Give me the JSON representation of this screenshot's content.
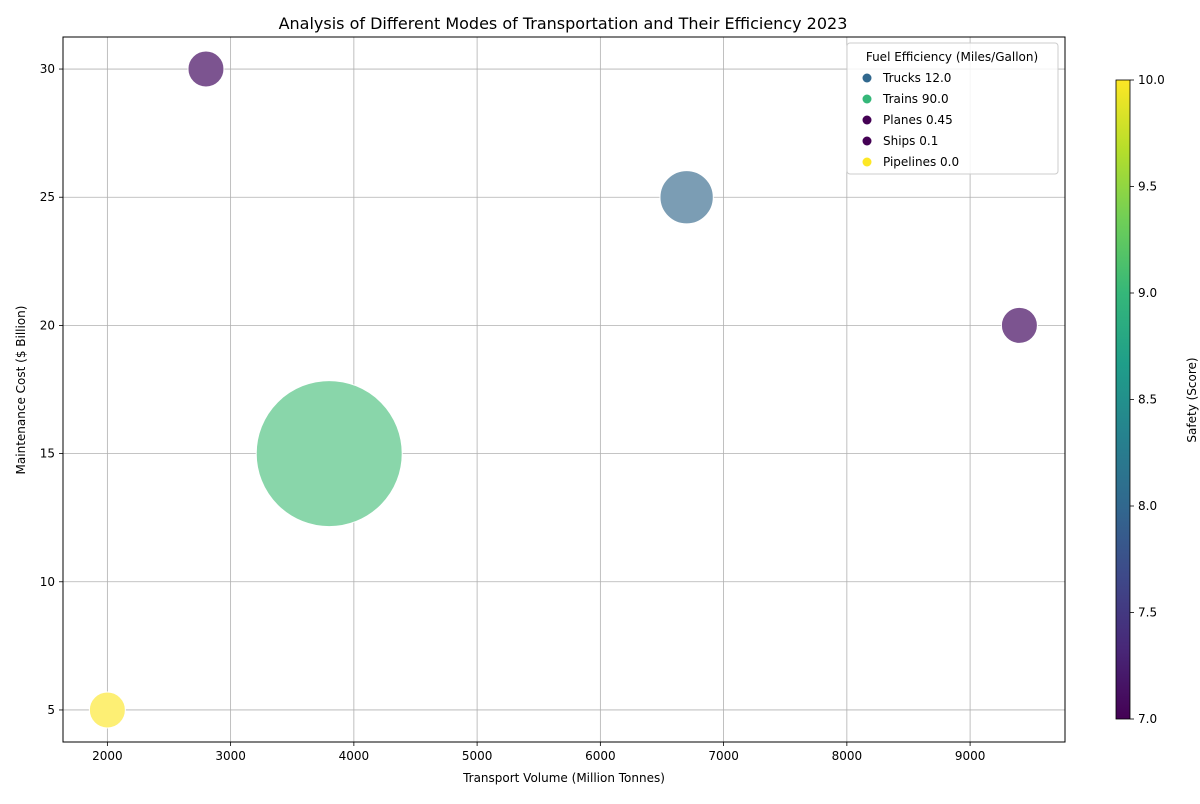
{
  "chart_data": {
    "type": "scatter",
    "title": "Analysis of Different Modes of Transportation and Their Efficiency 2023",
    "xlabel": "Transport Volume (Million Tonnes)",
    "ylabel": "Maintenance Cost ($ Billion)",
    "xlim": [
      1640,
      9770
    ],
    "ylim": [
      3.75,
      31.25
    ],
    "xticks": [
      2000,
      3000,
      4000,
      5000,
      6000,
      7000,
      8000,
      9000
    ],
    "yticks": [
      5,
      10,
      15,
      20,
      25,
      30
    ],
    "grid": true,
    "legend": {
      "title": "Fuel Efficiency (Miles/Gallon)",
      "placement": "top-right"
    },
    "colorbar": {
      "label": "Safety (Score)",
      "range": [
        7.0,
        10.0
      ],
      "ticks": [
        "7.0",
        "7.5",
        "8.0",
        "8.5",
        "9.0",
        "9.5",
        "10.0"
      ],
      "colormap": [
        "#440154",
        "#482878",
        "#3e4989",
        "#31688e",
        "#26828e",
        "#1f9e89",
        "#35b779",
        "#6ece58",
        "#b5de2b",
        "#fde725"
      ]
    },
    "points": [
      {
        "mode": "Trucks",
        "fuel_efficiency": 12.0,
        "fuel_label": "12.0",
        "volume": 6700,
        "cost": 25,
        "safety": 7.9,
        "legend_color": "#31688e",
        "color": "#7b9db4"
      },
      {
        "mode": "Trains",
        "fuel_efficiency": 90.0,
        "fuel_label": "90.0",
        "volume": 3800,
        "cost": 15,
        "safety": 9.1,
        "legend_color": "#35b779",
        "color": "#89d6aa"
      },
      {
        "mode": "Planes",
        "fuel_efficiency": 0.45,
        "fuel_label": "0.45",
        "volume": 2800,
        "cost": 30,
        "safety": 7.3,
        "legend_color": "#440154",
        "color": "#7c5490"
      },
      {
        "mode": "Ships",
        "fuel_efficiency": 0.1,
        "fuel_label": "0.1",
        "volume": 9400,
        "cost": 20,
        "safety": 7.3,
        "legend_color": "#440154",
        "color": "#7c5490"
      },
      {
        "mode": "Pipelines",
        "fuel_efficiency": 0.0,
        "fuel_label": "0.0",
        "volume": 2000,
        "cost": 5,
        "safety": 10.0,
        "legend_color": "#fde725",
        "color": "#fdef74"
      }
    ]
  }
}
